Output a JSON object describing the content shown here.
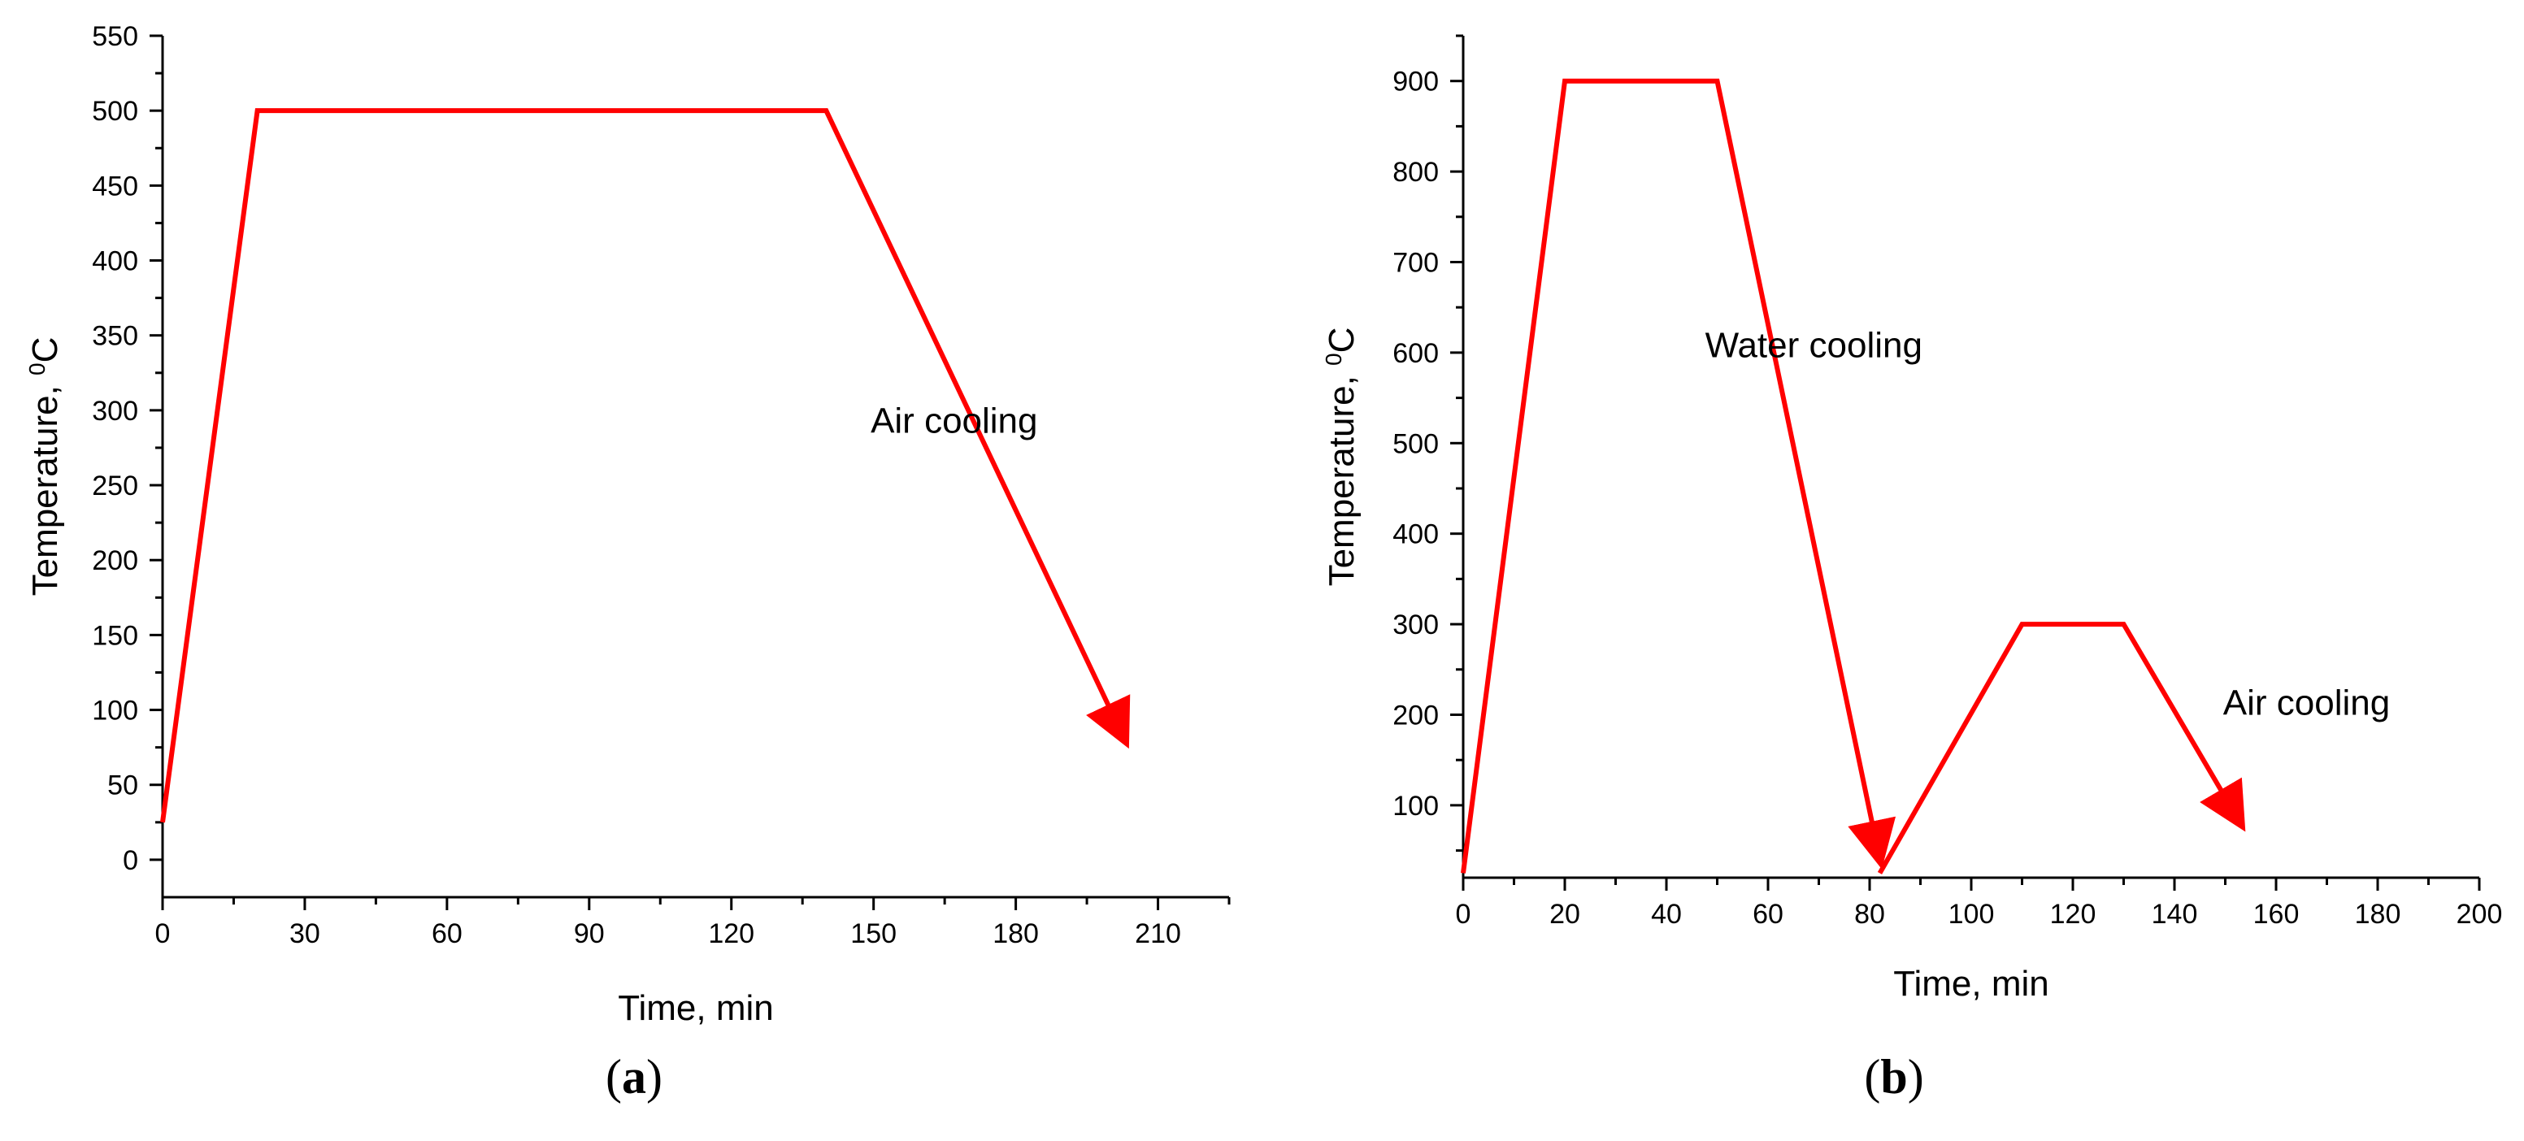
{
  "chart_data": [
    {
      "type": "line",
      "caption": "(a)",
      "caption_letter": "a",
      "xlabel": "Time, min",
      "ylabel": "Temperature, ",
      "ylabel_sup": "0",
      "ylabel_unit": "C",
      "xlim": [
        0,
        225
      ],
      "ylim": [
        -25,
        550
      ],
      "xticks": [
        0,
        30,
        60,
        90,
        120,
        150,
        180,
        210
      ],
      "yticks": [
        0,
        50,
        100,
        150,
        200,
        250,
        300,
        350,
        400,
        450,
        500,
        550
      ],
      "series": [
        {
          "x": [
            0,
            20,
            140,
            203
          ],
          "y": [
            25,
            500,
            500,
            80
          ],
          "arrow_end": true
        }
      ],
      "annotations": [
        {
          "text": "Air cooling",
          "x": 167,
          "y": 285
        }
      ],
      "grid": false,
      "color": "#ff0000"
    },
    {
      "type": "line",
      "caption": "(b)",
      "caption_letter": "b",
      "xlabel": "Time, min",
      "ylabel": "Temperature, ",
      "ylabel_sup": "0",
      "ylabel_unit": "C",
      "xlim": [
        0,
        200
      ],
      "ylim": [
        20,
        950
      ],
      "xticks": [
        0,
        20,
        40,
        60,
        80,
        100,
        120,
        140,
        160,
        180,
        200
      ],
      "yticks": [
        100,
        200,
        300,
        400,
        500,
        600,
        700,
        800,
        900
      ],
      "series": [
        {
          "x": [
            0,
            20,
            50,
            82
          ],
          "y": [
            25,
            900,
            900,
            40
          ],
          "arrow_end": true
        },
        {
          "x": [
            82,
            110,
            130,
            153
          ],
          "y": [
            25,
            300,
            300,
            80
          ],
          "arrow_end": true
        }
      ],
      "annotations": [
        {
          "text": "Water cooling",
          "x": 69,
          "y": 595
        },
        {
          "text": "Air cooling",
          "x": 166,
          "y": 200
        }
      ],
      "grid": false,
      "color": "#ff0000"
    }
  ]
}
